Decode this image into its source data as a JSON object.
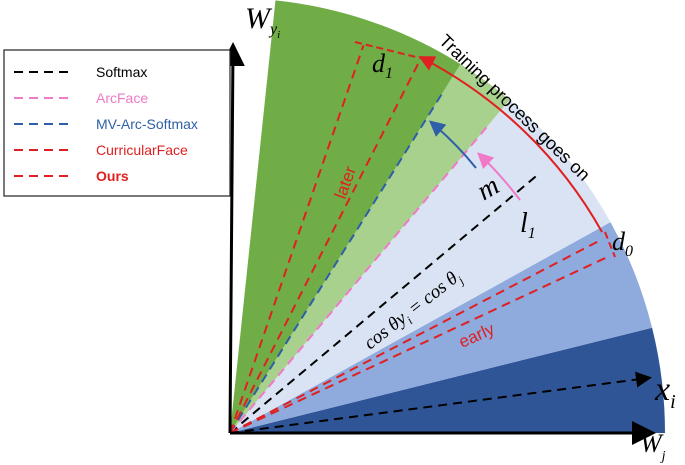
{
  "legend": [
    {
      "label": "Softmax",
      "color": "#000000"
    },
    {
      "label": "ArcFace",
      "color": "#f07ac8"
    },
    {
      "label": "MV-Arc-Softmax",
      "color": "#2e5fa8"
    },
    {
      "label": "CurricularFace",
      "color": "#e02020"
    },
    {
      "label": "Ours",
      "color": "#e02020"
    }
  ],
  "labels": {
    "training": "Training process goes on",
    "d1": "d",
    "d1_sub": "1",
    "d0": "d",
    "d0_sub": "0",
    "m": "m",
    "l1": "l",
    "l1_sub": "1",
    "later": "later",
    "early": "early",
    "boundary": "cos θy",
    "boundary_sub": "i",
    "boundary_rest": " = cos θ",
    "boundary_sub2": "j",
    "wy": "W",
    "wy_sub": "y",
    "wy_subsub": "i",
    "xi": "x",
    "xi_sub": "i",
    "wj": "W",
    "wj_sub": "j"
  }
}
